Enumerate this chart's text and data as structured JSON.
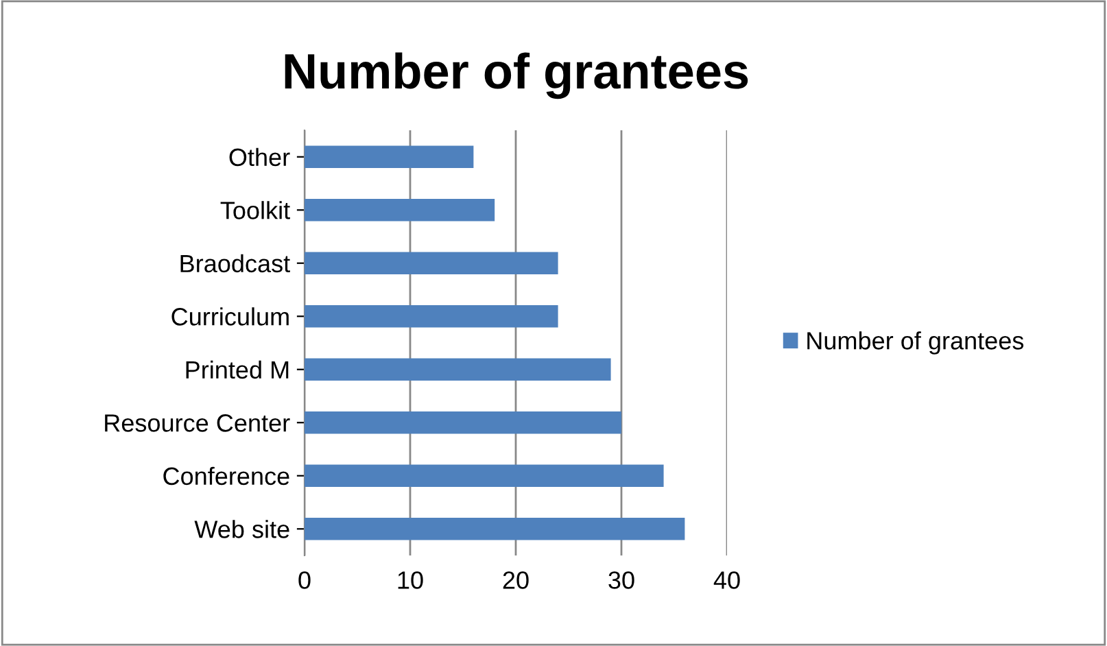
{
  "chart_data": {
    "type": "bar",
    "orientation": "horizontal",
    "title": "Number of grantees",
    "categories": [
      "Other",
      "Toolkit",
      "Braodcast",
      "Curriculum",
      "Printed M",
      "Resource Center",
      "Conference",
      "Web site"
    ],
    "series": [
      {
        "name": "Number of grantees",
        "color": "#4f81bd",
        "values": [
          16,
          18,
          24,
          24,
          29,
          30,
          34,
          36
        ]
      }
    ],
    "xlim": [
      0,
      40
    ],
    "xticks": [
      0,
      10,
      20,
      30,
      40
    ],
    "grid": "x",
    "legend": "right"
  }
}
